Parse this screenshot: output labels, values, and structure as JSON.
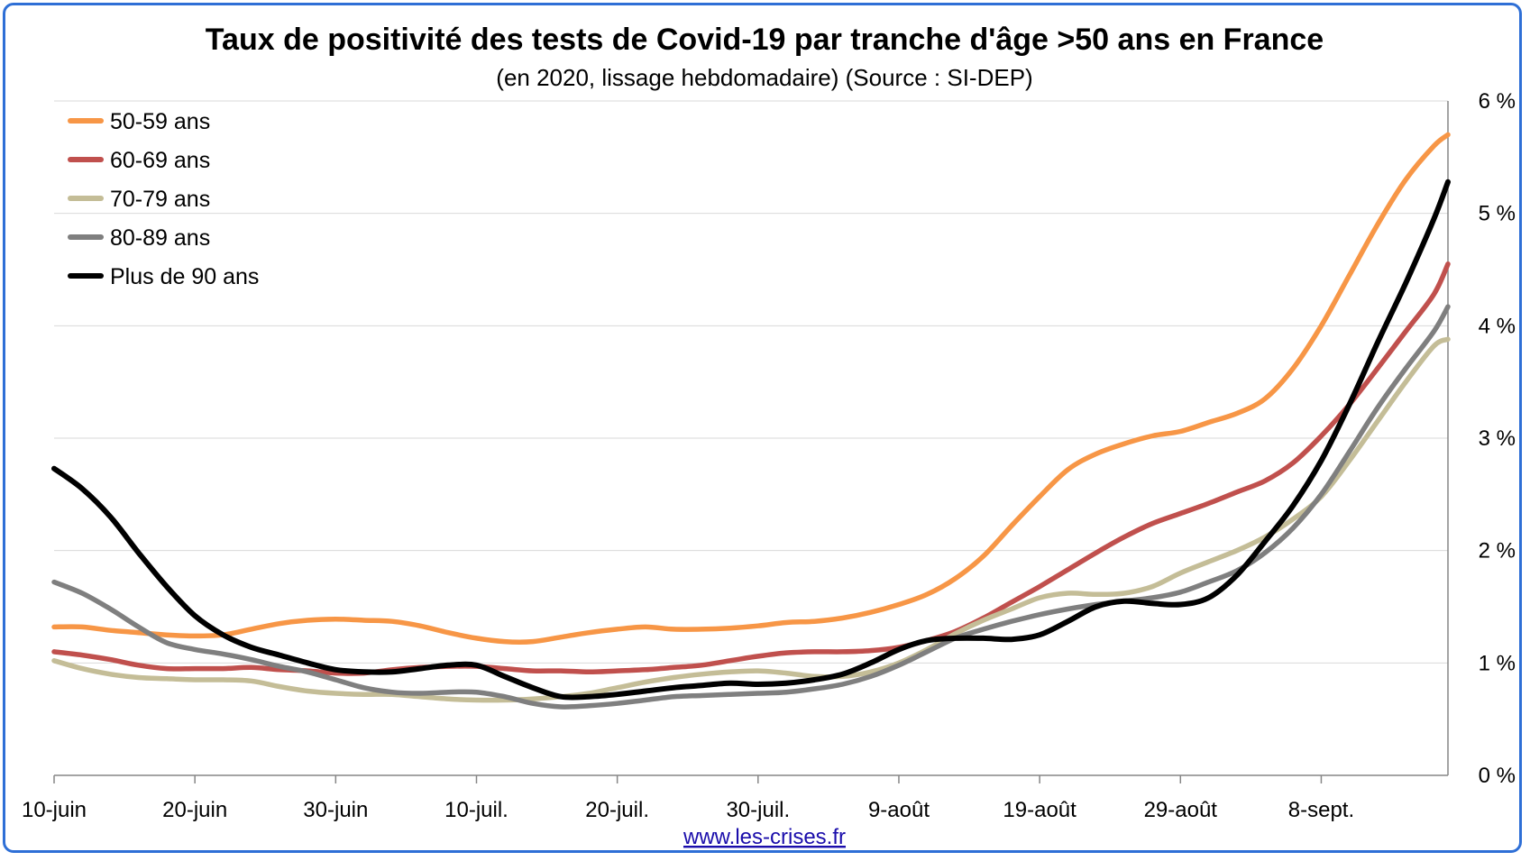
{
  "footer": {
    "link_text": "www.les-crises.fr"
  },
  "chart_data": {
    "type": "line",
    "title": "Taux de positivité des tests de Covid-19 par tranche d'âge >50 ans en France",
    "subtitle": "(en 2020, lissage hebdomadaire) (Source : SI-DEP)",
    "xlabel": "",
    "ylabel": "",
    "ylim": [
      0,
      6
    ],
    "y_ticks": [
      0,
      1,
      2,
      3,
      4,
      5,
      6
    ],
    "y_tick_labels": [
      "0 %",
      "1 %",
      "2 %",
      "3 %",
      "4 %",
      "5 %",
      "6 %"
    ],
    "y_axis_position": "right",
    "x_start_date": "2020-06-10",
    "x_end_date": "2020-09-17",
    "x_tick_labels": [
      "10-juin",
      "20-juin",
      "30-juin",
      "10-juil.",
      "20-juil.",
      "30-juil.",
      "9-août",
      "19-août",
      "29-août",
      "8-sept."
    ],
    "grid": true,
    "legend_position": "top-left",
    "x": [
      "2020-06-10",
      "2020-06-12",
      "2020-06-14",
      "2020-06-16",
      "2020-06-18",
      "2020-06-20",
      "2020-06-22",
      "2020-06-24",
      "2020-06-26",
      "2020-06-28",
      "2020-06-30",
      "2020-07-02",
      "2020-07-04",
      "2020-07-06",
      "2020-07-08",
      "2020-07-10",
      "2020-07-12",
      "2020-07-14",
      "2020-07-16",
      "2020-07-18",
      "2020-07-20",
      "2020-07-22",
      "2020-07-24",
      "2020-07-26",
      "2020-07-28",
      "2020-07-30",
      "2020-08-01",
      "2020-08-03",
      "2020-08-05",
      "2020-08-07",
      "2020-08-09",
      "2020-08-11",
      "2020-08-13",
      "2020-08-15",
      "2020-08-17",
      "2020-08-19",
      "2020-08-21",
      "2020-08-23",
      "2020-08-25",
      "2020-08-27",
      "2020-08-29",
      "2020-08-31",
      "2020-09-02",
      "2020-09-04",
      "2020-09-06",
      "2020-09-08",
      "2020-09-10",
      "2020-09-12",
      "2020-09-14",
      "2020-09-16",
      "2020-09-17"
    ],
    "series": [
      {
        "name": "50-59 ans",
        "color": "#f79646",
        "values": [
          1.32,
          1.32,
          1.29,
          1.27,
          1.25,
          1.24,
          1.25,
          1.3,
          1.35,
          1.38,
          1.39,
          1.38,
          1.37,
          1.33,
          1.27,
          1.22,
          1.19,
          1.19,
          1.23,
          1.27,
          1.3,
          1.32,
          1.3,
          1.3,
          1.31,
          1.33,
          1.36,
          1.37,
          1.4,
          1.45,
          1.52,
          1.61,
          1.75,
          1.95,
          2.22,
          2.48,
          2.72,
          2.86,
          2.95,
          3.02,
          3.06,
          3.14,
          3.22,
          3.35,
          3.62,
          4.0,
          4.45,
          4.9,
          5.3,
          5.6,
          5.7
        ]
      },
      {
        "name": "60-69 ans",
        "color": "#c0504d",
        "values": [
          1.1,
          1.07,
          1.03,
          0.98,
          0.95,
          0.95,
          0.95,
          0.96,
          0.94,
          0.93,
          0.91,
          0.91,
          0.94,
          0.96,
          0.97,
          0.97,
          0.95,
          0.93,
          0.93,
          0.92,
          0.93,
          0.94,
          0.96,
          0.98,
          1.02,
          1.06,
          1.09,
          1.1,
          1.1,
          1.11,
          1.14,
          1.2,
          1.28,
          1.4,
          1.54,
          1.68,
          1.83,
          1.98,
          2.12,
          2.24,
          2.33,
          2.42,
          2.52,
          2.62,
          2.78,
          3.02,
          3.3,
          3.62,
          3.95,
          4.28,
          4.55
        ]
      },
      {
        "name": "70-79 ans",
        "color": "#c4bd97",
        "values": [
          1.02,
          0.95,
          0.9,
          0.87,
          0.86,
          0.85,
          0.85,
          0.84,
          0.79,
          0.75,
          0.73,
          0.72,
          0.72,
          0.7,
          0.68,
          0.67,
          0.67,
          0.68,
          0.7,
          0.73,
          0.78,
          0.83,
          0.87,
          0.9,
          0.92,
          0.93,
          0.91,
          0.88,
          0.88,
          0.92,
          1.0,
          1.12,
          1.26,
          1.38,
          1.48,
          1.58,
          1.62,
          1.61,
          1.62,
          1.68,
          1.8,
          1.9,
          2.0,
          2.12,
          2.28,
          2.48,
          2.8,
          3.15,
          3.5,
          3.82,
          3.88
        ]
      },
      {
        "name": "80-89 ans",
        "color": "#7f7f7f",
        "values": [
          1.72,
          1.62,
          1.48,
          1.32,
          1.18,
          1.12,
          1.08,
          1.03,
          0.97,
          0.92,
          0.85,
          0.78,
          0.74,
          0.73,
          0.74,
          0.74,
          0.7,
          0.64,
          0.61,
          0.62,
          0.64,
          0.67,
          0.7,
          0.71,
          0.72,
          0.73,
          0.74,
          0.77,
          0.81,
          0.88,
          0.98,
          1.1,
          1.22,
          1.3,
          1.37,
          1.43,
          1.48,
          1.52,
          1.55,
          1.58,
          1.63,
          1.72,
          1.82,
          1.98,
          2.2,
          2.5,
          2.88,
          3.27,
          3.62,
          3.95,
          4.17
        ]
      },
      {
        "name": "Plus de 90 ans",
        "color": "#000000",
        "values": [
          2.73,
          2.55,
          2.3,
          1.98,
          1.68,
          1.42,
          1.25,
          1.14,
          1.07,
          1.0,
          0.94,
          0.92,
          0.92,
          0.95,
          0.98,
          0.98,
          0.88,
          0.78,
          0.7,
          0.7,
          0.72,
          0.75,
          0.78,
          0.8,
          0.82,
          0.81,
          0.82,
          0.85,
          0.9,
          1.0,
          1.12,
          1.2,
          1.22,
          1.22,
          1.21,
          1.25,
          1.37,
          1.5,
          1.55,
          1.53,
          1.52,
          1.58,
          1.78,
          2.08,
          2.4,
          2.8,
          3.3,
          3.85,
          4.38,
          4.95,
          5.28
        ]
      }
    ]
  }
}
